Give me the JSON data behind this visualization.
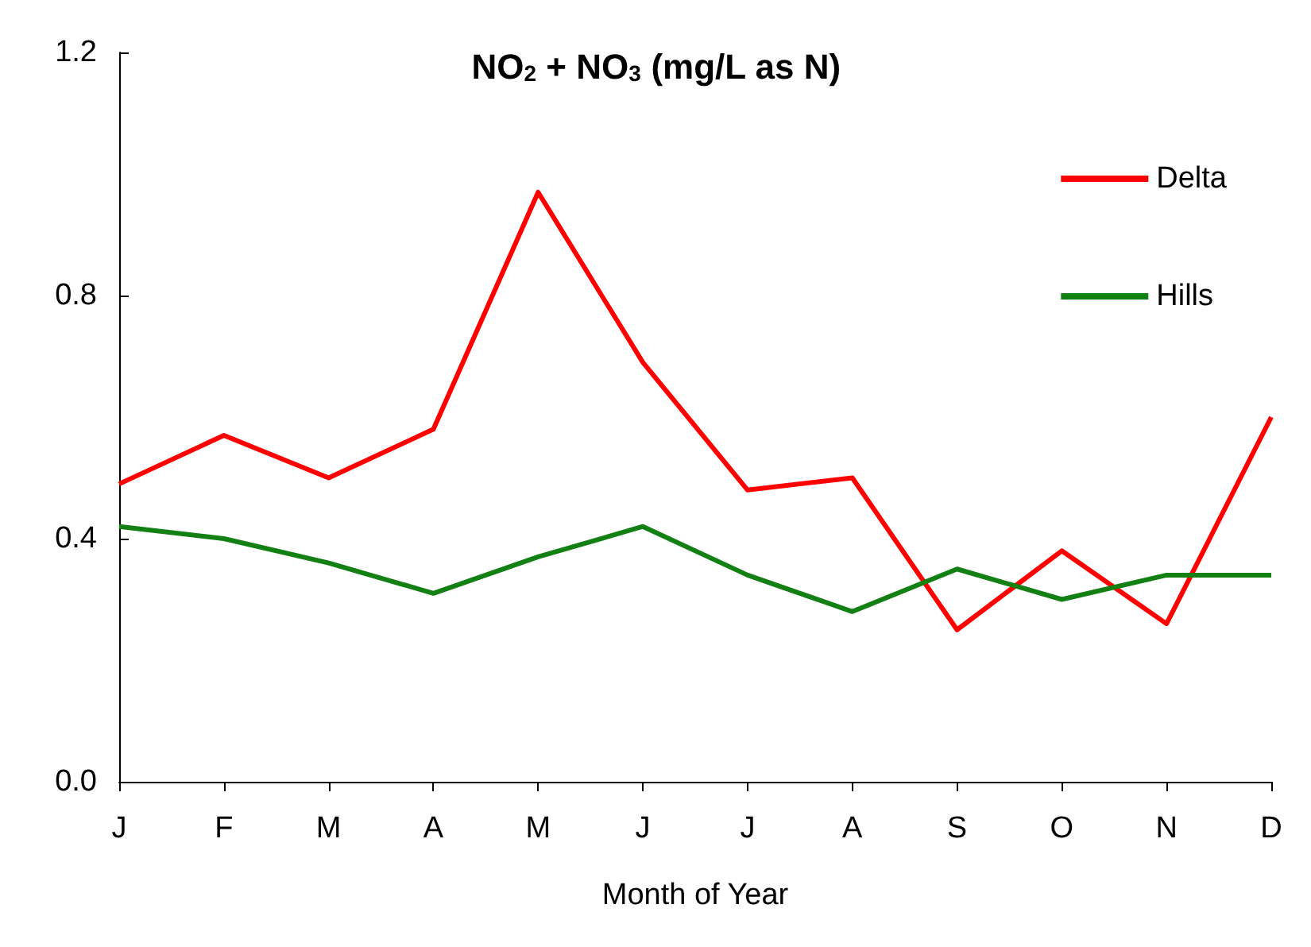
{
  "chart_data": {
    "type": "line",
    "title": "NO$_{2}$ + NO$_{3}$ (mg/L as N)",
    "xlabel": "Month of Year",
    "categories": [
      "J",
      "F",
      "M",
      "A",
      "M",
      "J",
      "J",
      "A",
      "S",
      "O",
      "N",
      "D"
    ],
    "series": [
      {
        "name": "Delta",
        "color": "#ff0000",
        "values": [
          0.49,
          0.57,
          0.5,
          0.58,
          0.97,
          0.69,
          0.48,
          0.5,
          0.25,
          0.38,
          0.26,
          0.6
        ]
      },
      {
        "name": "Hills",
        "color": "#138013",
        "values": [
          0.42,
          0.4,
          0.36,
          0.31,
          0.37,
          0.42,
          0.34,
          0.28,
          0.35,
          0.3,
          0.34,
          0.34
        ]
      }
    ],
    "ylim": [
      0,
      1.2
    ],
    "yticks": [
      {
        "value": 0,
        "label": "0.0"
      },
      0.4,
      0.8,
      1.2
    ],
    "grid": false,
    "legend": "top right",
    "marker": "none",
    "line_style": "solid"
  }
}
